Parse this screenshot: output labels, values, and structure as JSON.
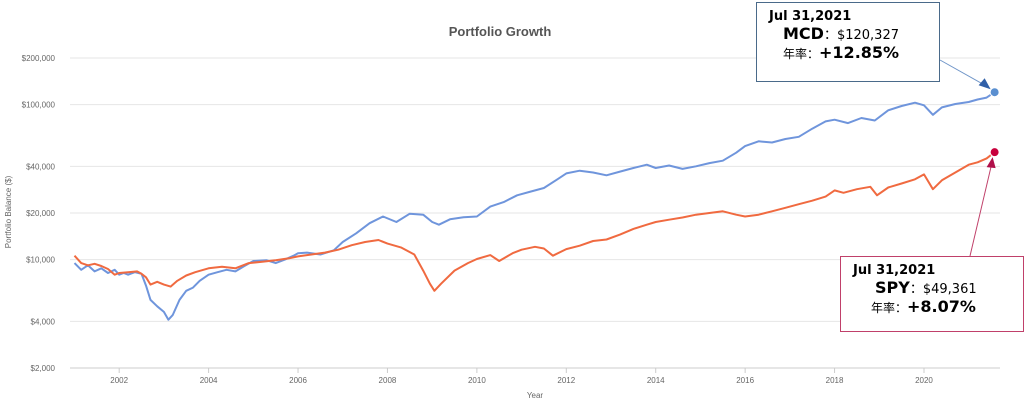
{
  "chart_data": {
    "type": "line",
    "title": "Portfolio Growth",
    "xlabel": "Year",
    "ylabel": "Portfolio Balance ($)",
    "y_scale": "log",
    "ylim": [
      2000,
      200000
    ],
    "xlim": [
      2000.9,
      2021.7
    ],
    "y_ticks": [
      2000,
      4000,
      10000,
      20000,
      40000,
      100000,
      200000
    ],
    "y_tick_labels": [
      "$2,000",
      "$4,000",
      "$10,000",
      "$20,000",
      "$40,000",
      "$100,000",
      "$200,000"
    ],
    "x_ticks": [
      2002,
      2004,
      2006,
      2008,
      2010,
      2012,
      2014,
      2016,
      2018,
      2020
    ],
    "x_tick_labels": [
      "2002",
      "2004",
      "2006",
      "2008",
      "2010",
      "2012",
      "2014",
      "2016",
      "2018",
      "2020"
    ],
    "grid": "horizontal",
    "series": [
      {
        "key": "mcd",
        "color": "#6f95dc",
        "x": [
          2001.0,
          2001.15,
          2001.3,
          2001.45,
          2001.6,
          2001.75,
          2001.9,
          2002.0,
          2002.1,
          2002.2,
          2002.35,
          2002.5,
          2002.6,
          2002.7,
          2002.85,
          2003.0,
          2003.1,
          2003.2,
          2003.35,
          2003.5,
          2003.65,
          2003.8,
          2004.0,
          2004.2,
          2004.4,
          2004.6,
          2004.8,
          2005.0,
          2005.3,
          2005.5,
          2005.7,
          2005.9,
          2006.0,
          2006.2,
          2006.5,
          2006.8,
          2007.0,
          2007.3,
          2007.6,
          2007.9,
          2008.2,
          2008.5,
          2008.8,
          2009.0,
          2009.15,
          2009.4,
          2009.7,
          2010.0,
          2010.3,
          2010.6,
          2010.9,
          2011.2,
          2011.5,
          2011.8,
          2012.0,
          2012.3,
          2012.6,
          2012.9,
          2013.2,
          2013.5,
          2013.8,
          2014.0,
          2014.3,
          2014.6,
          2014.9,
          2015.2,
          2015.5,
          2015.8,
          2016.0,
          2016.3,
          2016.6,
          2016.9,
          2017.2,
          2017.5,
          2017.8,
          2018.0,
          2018.3,
          2018.6,
          2018.9,
          2019.2,
          2019.5,
          2019.8,
          2020.0,
          2020.2,
          2020.4,
          2020.7,
          2021.0,
          2021.2,
          2021.4,
          2021.58
        ],
        "y": [
          9500,
          8600,
          9200,
          8400,
          8800,
          8200,
          8600,
          8000,
          8200,
          8000,
          8300,
          8100,
          6800,
          5500,
          5000,
          4600,
          4100,
          4400,
          5500,
          6300,
          6600,
          7300,
          8000,
          8300,
          8600,
          8400,
          9100,
          9800,
          9900,
          9500,
          10000,
          10600,
          11000,
          11100,
          10800,
          11500,
          13000,
          14800,
          17200,
          19000,
          17500,
          19800,
          19500,
          17500,
          16800,
          18200,
          18800,
          19000,
          22000,
          23500,
          26000,
          27500,
          29000,
          33000,
          36000,
          37500,
          36500,
          35000,
          37000,
          39000,
          41000,
          39000,
          40500,
          38500,
          40000,
          42000,
          43500,
          49000,
          54000,
          58000,
          57000,
          60000,
          62000,
          70000,
          78000,
          80000,
          76000,
          82000,
          79000,
          92000,
          98000,
          103000,
          99000,
          86000,
          96000,
          101000,
          104000,
          108000,
          111000,
          120327
        ]
      },
      {
        "key": "spy",
        "color": "#f06a40",
        "x": [
          2001.0,
          2001.15,
          2001.3,
          2001.45,
          2001.6,
          2001.75,
          2001.9,
          2002.0,
          2002.2,
          2002.4,
          2002.5,
          2002.6,
          2002.7,
          2002.85,
          2003.0,
          2003.15,
          2003.3,
          2003.5,
          2003.7,
          2004.0,
          2004.3,
          2004.6,
          2004.9,
          2005.2,
          2005.5,
          2005.8,
          2006.0,
          2006.3,
          2006.6,
          2006.9,
          2007.2,
          2007.5,
          2007.8,
          2008.0,
          2008.3,
          2008.6,
          2008.8,
          2008.95,
          2009.05,
          2009.2,
          2009.5,
          2009.8,
          2010.0,
          2010.3,
          2010.5,
          2010.8,
          2011.0,
          2011.3,
          2011.5,
          2011.7,
          2012.0,
          2012.3,
          2012.6,
          2012.9,
          2013.2,
          2013.5,
          2013.8,
          2014.0,
          2014.3,
          2014.6,
          2014.9,
          2015.2,
          2015.5,
          2015.8,
          2016.0,
          2016.3,
          2016.6,
          2016.9,
          2017.2,
          2017.5,
          2017.8,
          2018.0,
          2018.2,
          2018.5,
          2018.8,
          2018.95,
          2019.2,
          2019.5,
          2019.8,
          2020.0,
          2020.2,
          2020.4,
          2020.7,
          2021.0,
          2021.2,
          2021.4,
          2021.58
        ],
        "y": [
          10600,
          9500,
          9200,
          9400,
          9100,
          8700,
          8000,
          8200,
          8300,
          8400,
          8100,
          7700,
          6900,
          7200,
          6900,
          6700,
          7300,
          7900,
          8300,
          8800,
          9000,
          8800,
          9500,
          9700,
          9900,
          10200,
          10500,
          10800,
          11100,
          11600,
          12400,
          13000,
          13400,
          12700,
          12000,
          10800,
          8500,
          7000,
          6300,
          7000,
          8500,
          9500,
          10100,
          10700,
          9800,
          11000,
          11600,
          12100,
          11800,
          10600,
          11700,
          12300,
          13200,
          13500,
          14500,
          15800,
          16800,
          17500,
          18100,
          18700,
          19500,
          20000,
          20500,
          19500,
          19000,
          19500,
          20500,
          21600,
          22800,
          24000,
          25500,
          28000,
          27000,
          28500,
          29500,
          26000,
          29200,
          31000,
          33000,
          35500,
          28500,
          32500,
          36500,
          41000,
          42500,
          45000,
          49361
        ]
      }
    ]
  },
  "callouts": {
    "mcd": {
      "date": "Jul 31,2021",
      "ticker": "MCD",
      "sep": "：",
      "balance": "$120,327",
      "rate_label": "年率：",
      "rate": "+12.85%",
      "border": "#4a6a8a"
    },
    "spy": {
      "date": "Jul 31,2021",
      "ticker": "SPY",
      "sep": "：",
      "balance": "$49,361",
      "rate_label": "年率：",
      "rate": "+8.07%",
      "border": "#c0406a"
    }
  },
  "marker_colors": {
    "mcd": "#5a8fd0",
    "spy": "#c8003c",
    "mcd_arrow": "#3060a8",
    "spy_arrow": "#b0104a"
  }
}
